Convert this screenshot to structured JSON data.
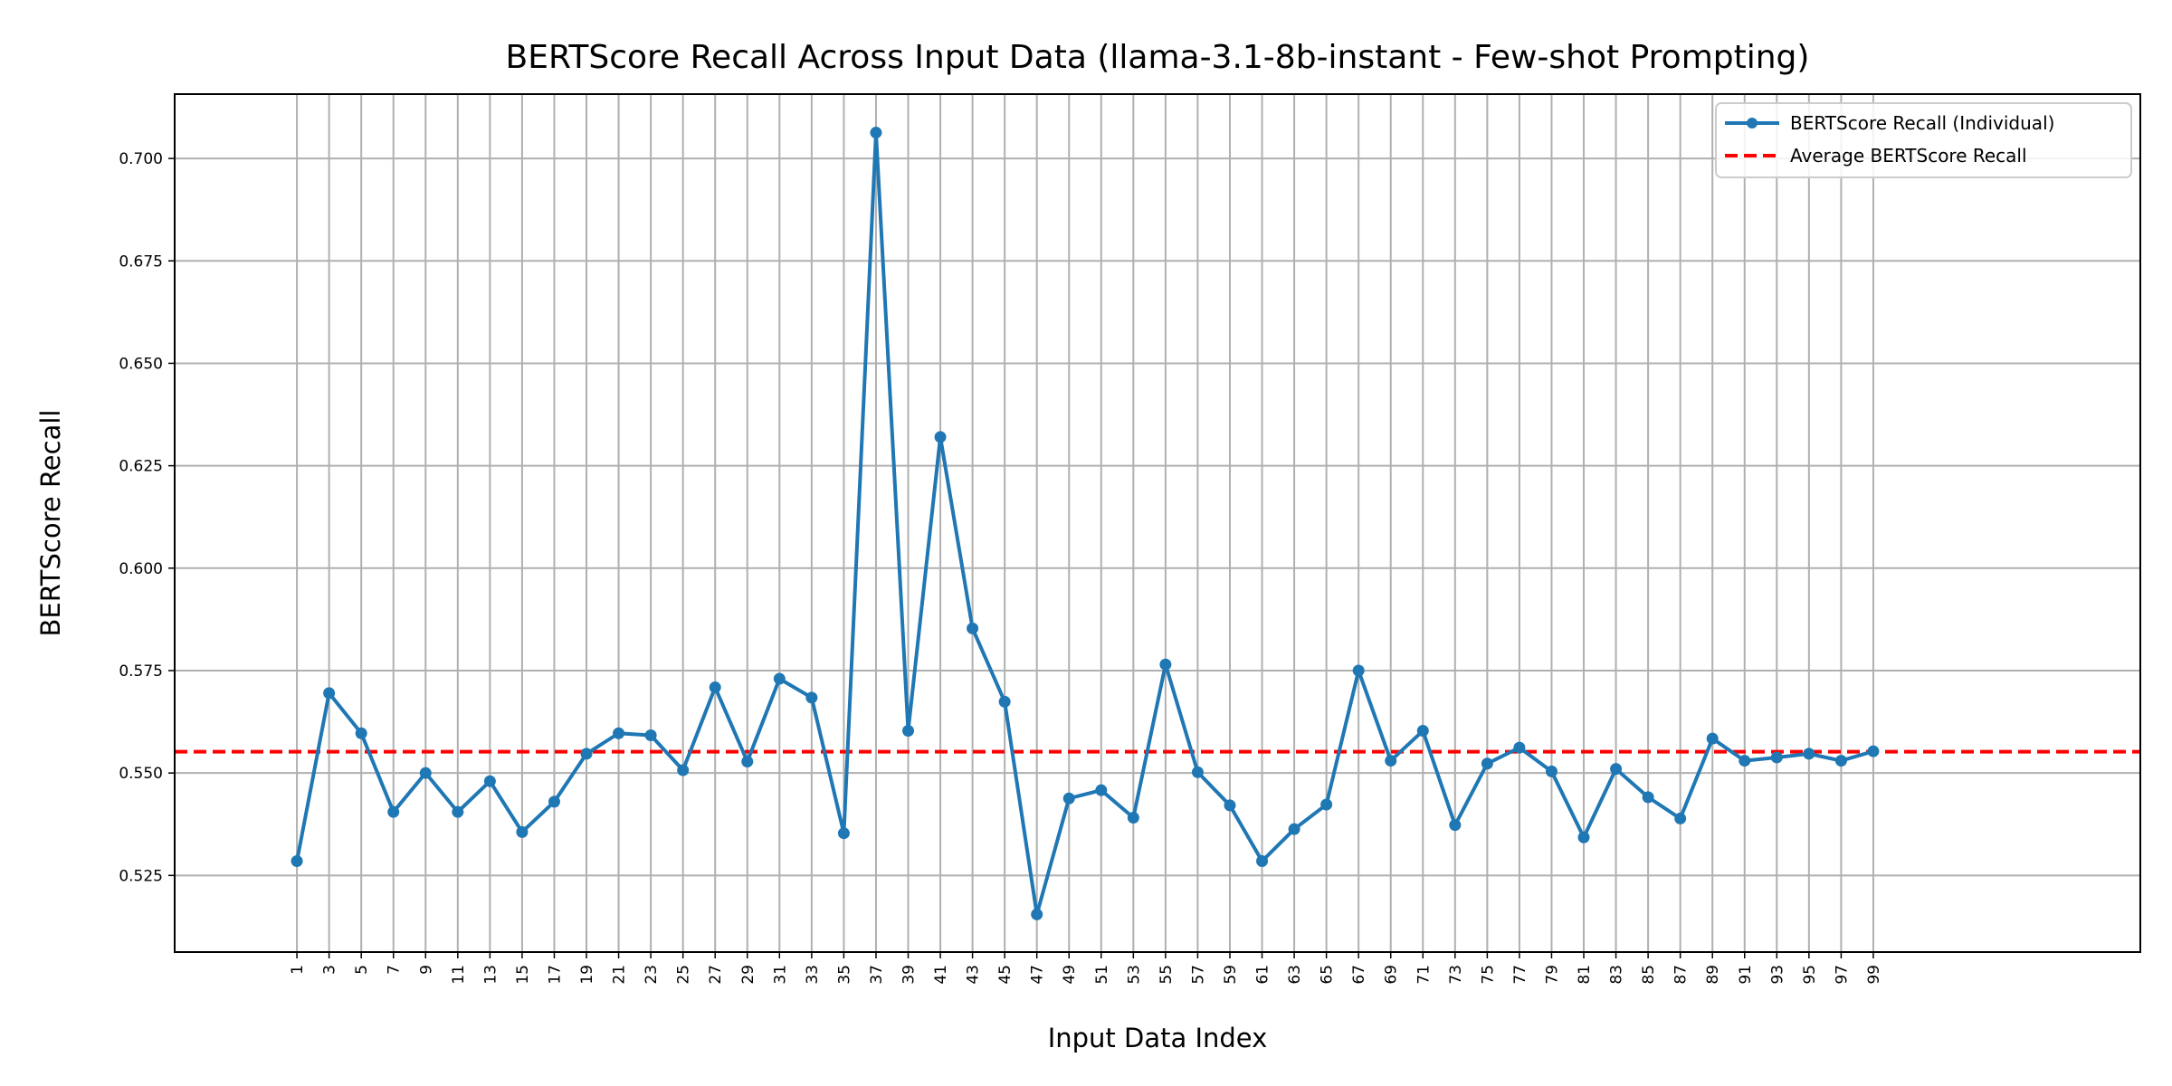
{
  "chart_data": {
    "type": "line",
    "title": "BERTScore Recall Across Input Data (llama-3.1-8b-instant - Few-shot Prompting)",
    "xlabel": "Input Data Index",
    "ylabel": "BERTScore Recall",
    "x": [
      1,
      3,
      5,
      7,
      9,
      11,
      13,
      15,
      17,
      19,
      21,
      23,
      25,
      27,
      29,
      31,
      33,
      35,
      37,
      39,
      41,
      43,
      45,
      47,
      49,
      51,
      53,
      55,
      57,
      59,
      61,
      63,
      65,
      67,
      69,
      71,
      73,
      75,
      77,
      79,
      81,
      83,
      85,
      87,
      89,
      91,
      93,
      95,
      97,
      99
    ],
    "xticks": [
      "1",
      "3",
      "5",
      "7",
      "9",
      "11",
      "13",
      "15",
      "17",
      "19",
      "21",
      "23",
      "25",
      "27",
      "29",
      "31",
      "33",
      "35",
      "37",
      "39",
      "41",
      "43",
      "45",
      "47",
      "49",
      "51",
      "53",
      "55",
      "57",
      "59",
      "61",
      "63",
      "65",
      "67",
      "69",
      "71",
      "73",
      "75",
      "77",
      "79",
      "81",
      "83",
      "85",
      "87",
      "89",
      "91",
      "93",
      "95",
      "97",
      "99"
    ],
    "yticks": [
      "0.525",
      "0.550",
      "0.575",
      "0.600",
      "0.625",
      "0.650",
      "0.675",
      "0.700"
    ],
    "ytick_values": [
      0.525,
      0.55,
      0.575,
      0.6,
      0.625,
      0.65,
      0.675,
      0.7
    ],
    "xlim": [
      -6.6,
      115.6
    ],
    "ylim": [
      0.5063,
      0.7157
    ],
    "grid": true,
    "legend_position": "top-right",
    "series": [
      {
        "name": "BERTScore Recall (Individual)",
        "color": "#1f77b4",
        "values": [
          0.5285,
          0.5695,
          0.5597,
          0.5405,
          0.55,
          0.5405,
          0.548,
          0.5356,
          0.543,
          0.5547,
          0.5597,
          0.5592,
          0.5507,
          0.5709,
          0.5528,
          0.573,
          0.5684,
          0.5353,
          0.7063,
          0.5603,
          0.632,
          0.5853,
          0.5674,
          0.5155,
          0.5438,
          0.5458,
          0.5391,
          0.5765,
          0.5502,
          0.5421,
          0.5285,
          0.5363,
          0.5423,
          0.575,
          0.553,
          0.5603,
          0.5373,
          0.5523,
          0.5562,
          0.5504,
          0.5343,
          0.551,
          0.5441,
          0.5389,
          0.5584,
          0.553,
          0.5538,
          0.5547,
          0.553,
          0.5553
        ]
      }
    ],
    "average": {
      "name": "Average BERTScore Recall",
      "color": "#ff0000",
      "value": 0.5552
    }
  }
}
